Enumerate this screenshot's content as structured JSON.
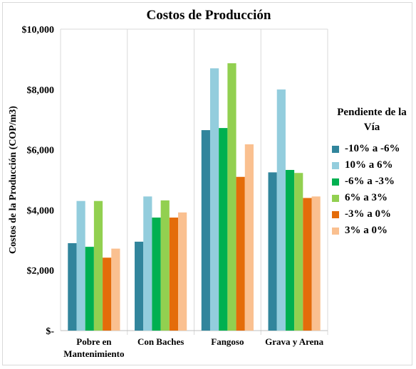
{
  "chart_data": {
    "type": "bar",
    "title": "Costos de Producción",
    "xlabel": "",
    "ylabel": "Costos de la Producción (COP/m3)",
    "ylim": [
      0,
      10000
    ],
    "yticks": [
      {
        "value": 0,
        "label": "$-"
      },
      {
        "value": 2000,
        "label": "$2,000"
      },
      {
        "value": 4000,
        "label": "$4,000"
      },
      {
        "value": 6000,
        "label": "$6,000"
      },
      {
        "value": 8000,
        "label": "$8,000"
      },
      {
        "value": 10000,
        "label": "$10,000"
      }
    ],
    "categories": [
      [
        "Pobre en",
        "Mantenimiento"
      ],
      [
        "Con Baches"
      ],
      [
        "Fangoso"
      ],
      [
        "Grava y Arena"
      ]
    ],
    "grid": "vertical category separators",
    "legend_title": "Pendiente de la Vía",
    "legend_placement": "right",
    "series": [
      {
        "name": "-10% a -6%",
        "color": "#31859c",
        "values": [
          2900,
          2950,
          6650,
          5250
        ]
      },
      {
        "name": "10% a 6%",
        "color": "#93cddd",
        "values": [
          4300,
          4450,
          8700,
          8000
        ]
      },
      {
        "name": "-6% a -3%",
        "color": "#00b050",
        "values": [
          2780,
          3750,
          6720,
          5330
        ]
      },
      {
        "name": "6% a 3%",
        "color": "#92d050",
        "values": [
          4300,
          4320,
          8870,
          5230
        ]
      },
      {
        "name": "-3% a 0%",
        "color": "#e46c0a",
        "values": [
          2420,
          3750,
          5100,
          4400
        ]
      },
      {
        "name": "3% a 0%",
        "color": "#fac090",
        "values": [
          2720,
          3920,
          6180,
          4450
        ]
      }
    ]
  }
}
